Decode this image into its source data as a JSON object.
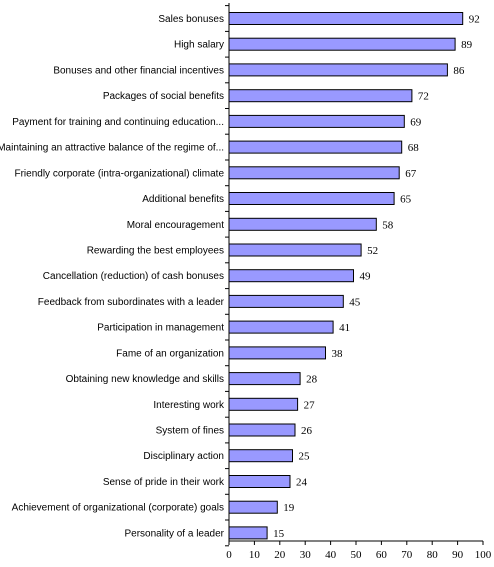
{
  "colors": {
    "bar_fill": "#9999ff",
    "bar_stroke": "#000000",
    "axis": "#000000"
  },
  "chart_data": {
    "type": "bar",
    "orientation": "horizontal",
    "categories": [
      "Sales bonuses",
      "High salary",
      "Bonuses and other financial incentives",
      "Packages of social benefits",
      "Payment for training and continuing education...",
      "Maintaining an attractive balance of the regime of...",
      "Friendly corporate (intra-organizational) climate",
      "Additional benefits",
      "Moral encouragement",
      "Rewarding the best employees",
      "Cancellation (reduction) of cash bonuses",
      "Feedback from subordinates with a leader",
      "Participation in management",
      "Fame of an organization",
      "Obtaining new knowledge and skills",
      "Interesting work",
      "System of fines",
      "Disciplinary action",
      "Sense of pride in their work",
      "Achievement of organizational (corporate) goals",
      "Personality of a leader"
    ],
    "values": [
      92,
      89,
      86,
      72,
      69,
      68,
      67,
      65,
      58,
      52,
      49,
      45,
      41,
      38,
      28,
      27,
      26,
      25,
      24,
      19,
      15
    ],
    "xlim": [
      0,
      100
    ],
    "xticks": [
      0,
      10,
      20,
      30,
      40,
      50,
      60,
      70,
      80,
      90,
      100
    ],
    "title": "",
    "xlabel": "",
    "ylabel": "",
    "grid": false,
    "legend": "none",
    "data_labels": true
  }
}
